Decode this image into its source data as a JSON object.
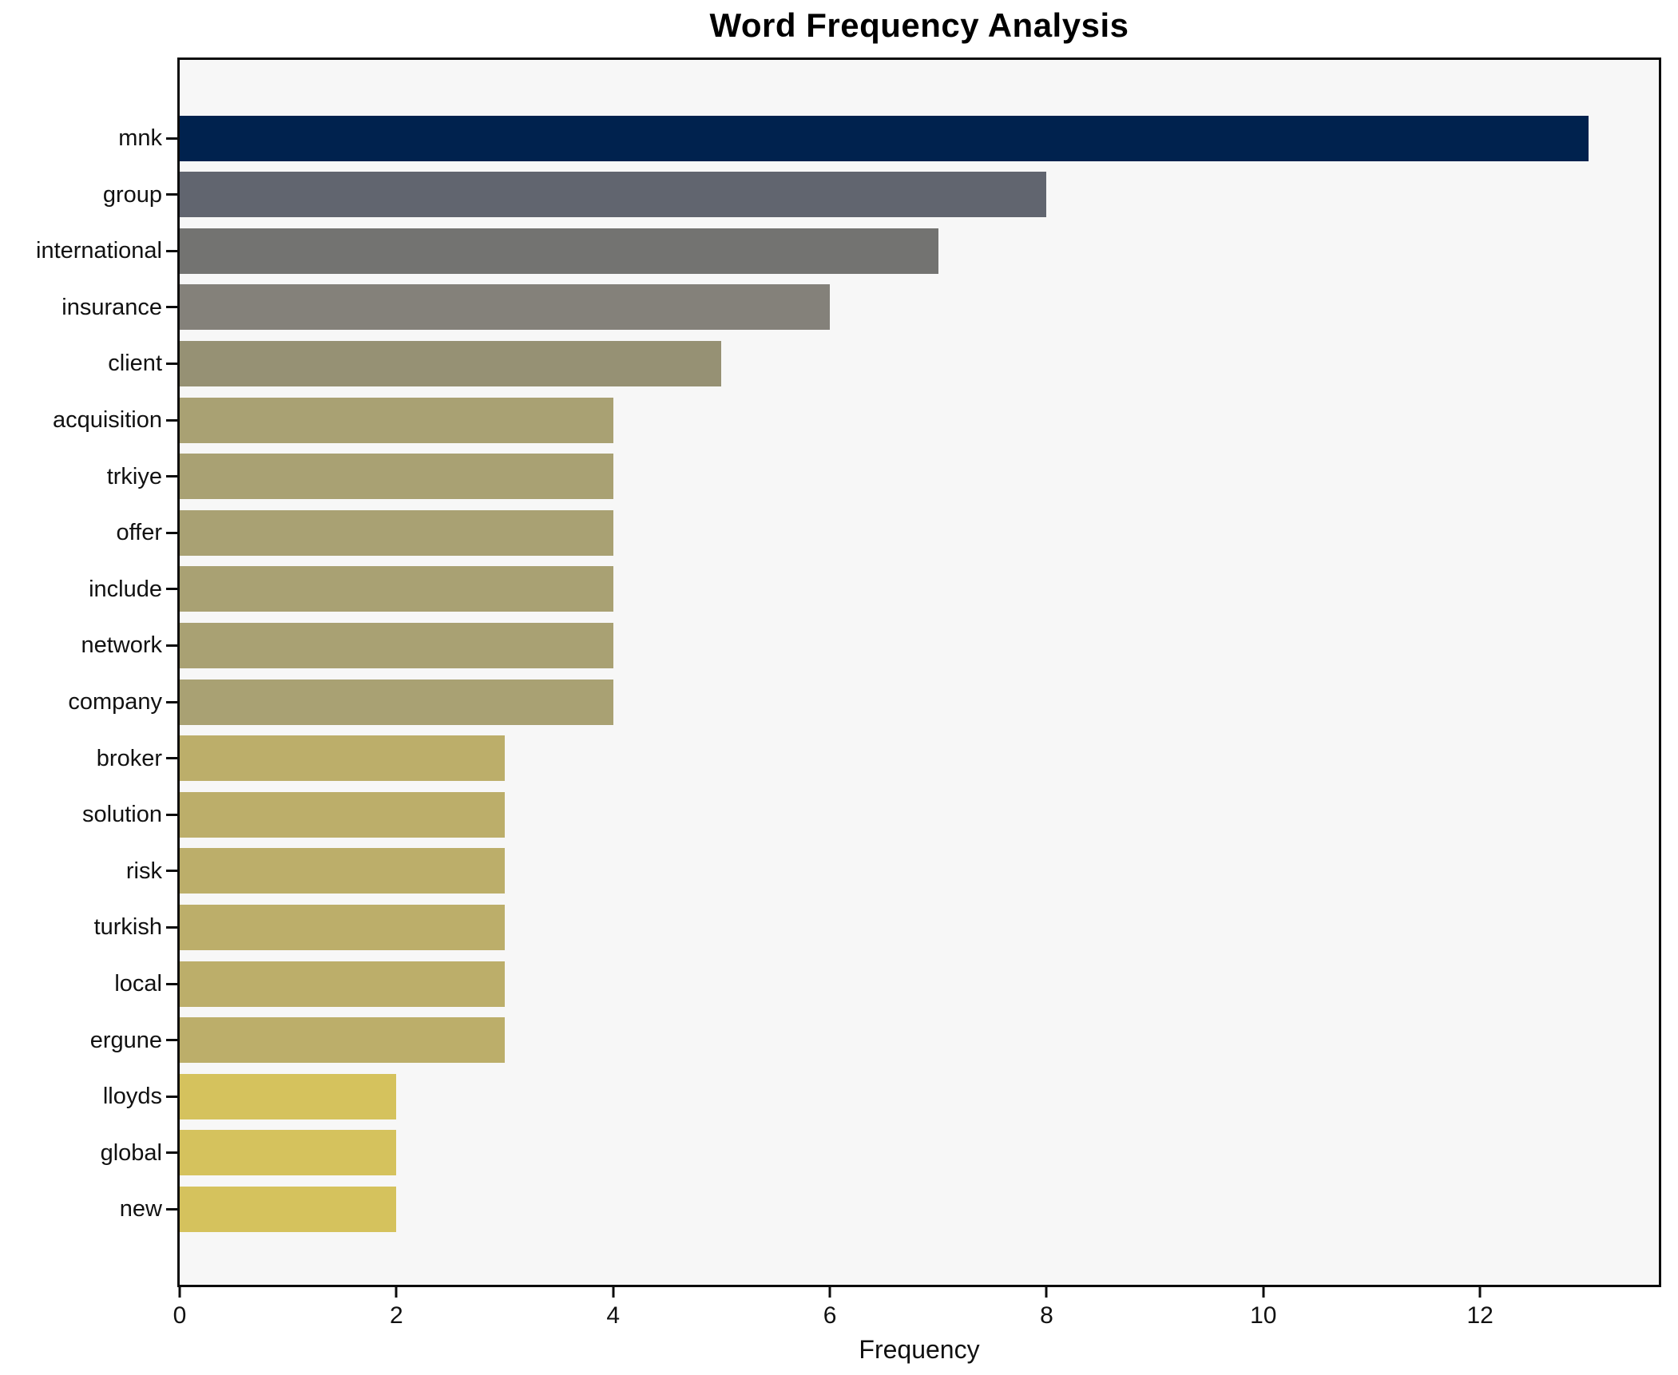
{
  "chart_data": {
    "type": "bar",
    "orientation": "horizontal",
    "title": "Word Frequency Analysis",
    "xlabel": "Frequency",
    "ylabel": "",
    "categories": [
      "mnk",
      "group",
      "international",
      "insurance",
      "client",
      "acquisition",
      "trkiye",
      "offer",
      "include",
      "network",
      "company",
      "broker",
      "solution",
      "risk",
      "turkish",
      "local",
      "ergune",
      "lloyds",
      "global",
      "new"
    ],
    "values": [
      13,
      8,
      7,
      6,
      5,
      4,
      4,
      4,
      4,
      4,
      4,
      3,
      3,
      3,
      3,
      3,
      3,
      2,
      2,
      2
    ],
    "bar_colors": [
      "#00224e",
      "#61656f",
      "#737371",
      "#84817a",
      "#969174",
      "#a9a173",
      "#a9a173",
      "#a9a173",
      "#a9a173",
      "#a9a173",
      "#a9a173",
      "#bcae6a",
      "#bcae6a",
      "#bcae6a",
      "#bcae6a",
      "#bcae6a",
      "#bcae6a",
      "#d5c25d",
      "#d5c25d",
      "#d5c25d"
    ],
    "xlim": [
      0,
      13.65
    ],
    "xticks": [
      0,
      2,
      4,
      6,
      8,
      10,
      12
    ],
    "grid": false,
    "legend": false,
    "colormap": "cividis",
    "plot_bg": "#f7f7f7",
    "figure_bg": "#ffffff",
    "spine_color": "#0c0c0c"
  }
}
